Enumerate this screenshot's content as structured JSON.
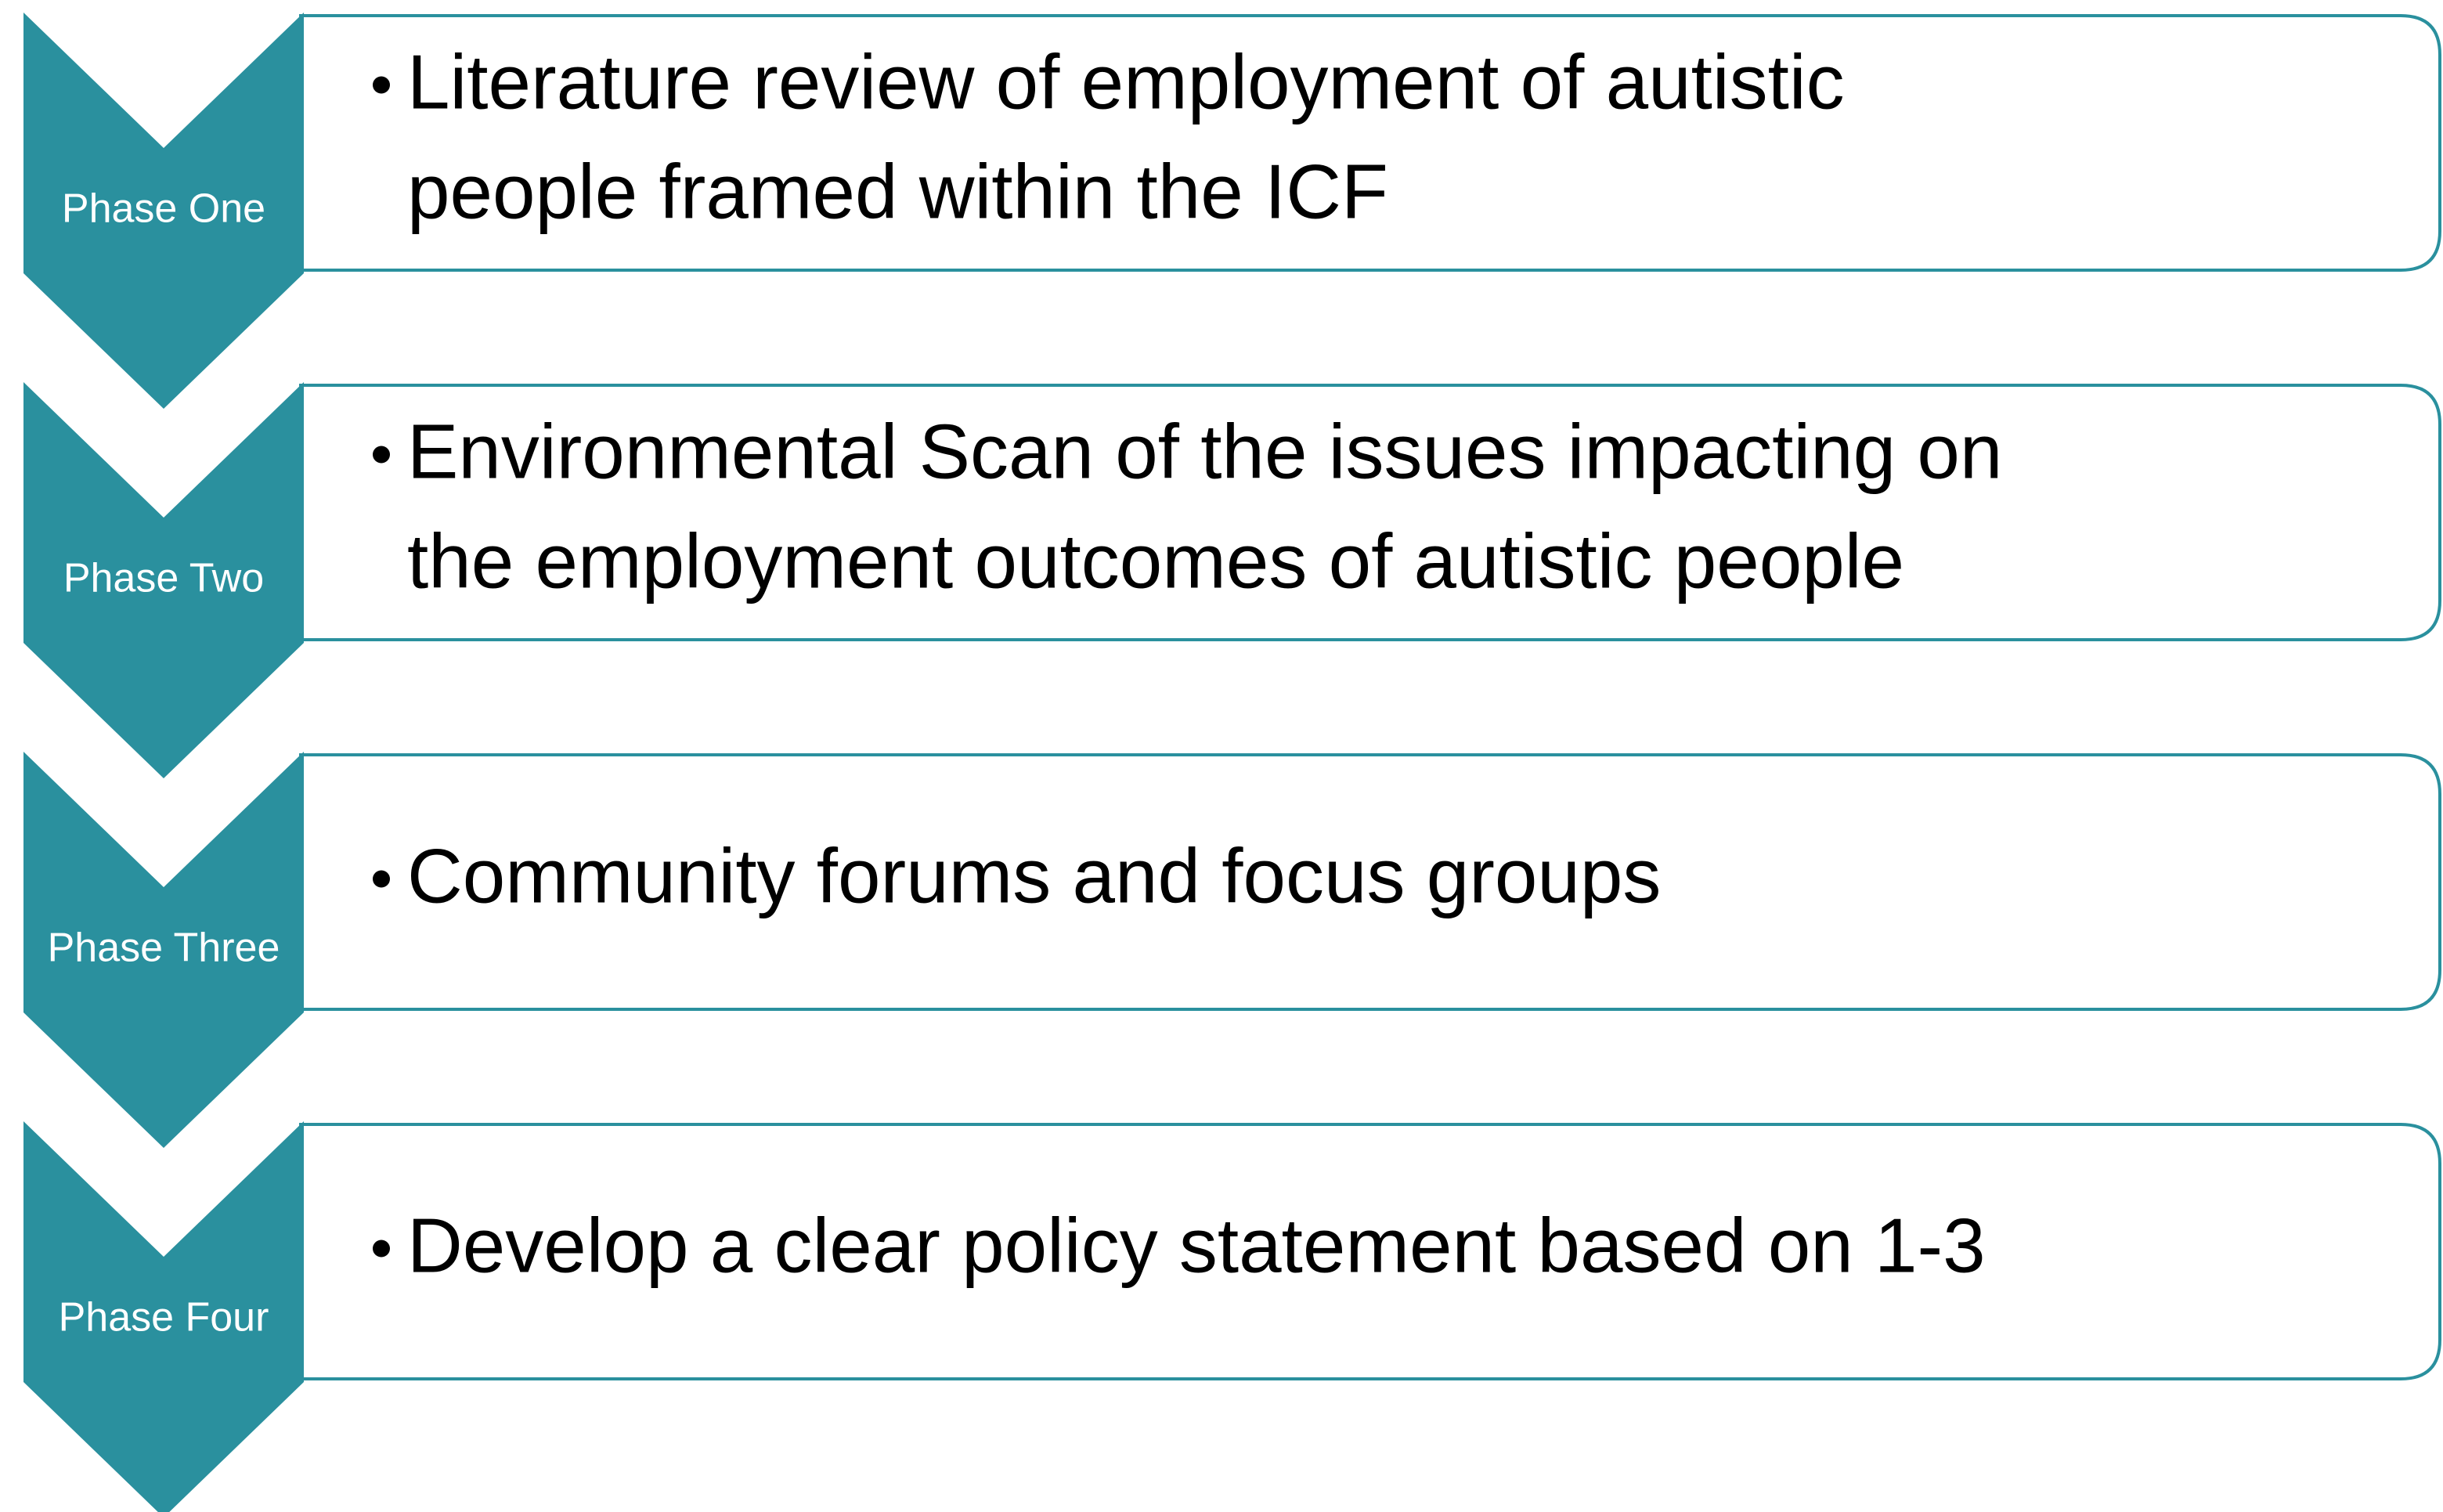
{
  "phases": [
    {
      "label": "Phase One",
      "lines": [
        "Literature review of employment of autistic",
        "people framed within the ICF"
      ]
    },
    {
      "label": "Phase Two",
      "lines": [
        "Environmental Scan of the issues impacting on",
        "the employment outcomes of autistic people"
      ]
    },
    {
      "label": "Phase Three",
      "lines": [
        "Community forums and focus groups"
      ]
    },
    {
      "label": "Phase Four",
      "lines": [
        "Develop a clear policy statement based on 1-3"
      ]
    }
  ]
}
